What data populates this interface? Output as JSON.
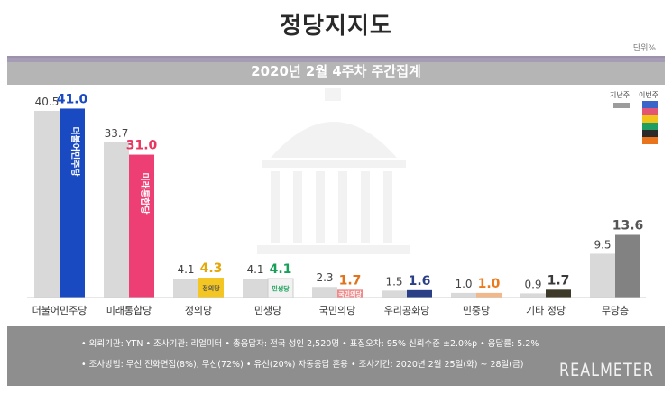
{
  "title": "정당지지도",
  "unit": "단위%",
  "subtitle": "2020년 2월 4주차 주간집계",
  "legend": {
    "prev": "지난주",
    "curr": "이번주"
  },
  "colors": {
    "prev": "#d9d9d9",
    "legend_curr": [
      "#3a66c9",
      "#e25574",
      "#f0c419",
      "#1e9e62",
      "#2b2b2b",
      "#e8741d"
    ]
  },
  "chart_data": {
    "type": "bar",
    "categories": [
      "더불어민주당",
      "미래통합당",
      "정의당",
      "민생당",
      "국민의당",
      "우리공화당",
      "민중당",
      "기타 정당",
      "무당층"
    ],
    "series": [
      {
        "name": "지난주",
        "values": [
          40.5,
          33.7,
          4.1,
          4.1,
          2.3,
          1.5,
          1.0,
          0.9,
          9.5
        ]
      },
      {
        "name": "이번주",
        "values": [
          41.0,
          31.0,
          4.3,
          4.1,
          1.7,
          1.6,
          1.0,
          1.7,
          13.6
        ]
      }
    ],
    "current_colors": [
      "#1a4ac2",
      "#ee3f74",
      "#f3c623",
      "#f2f2f2",
      "#f08a8a",
      "#2b3f86",
      "#f0b88b",
      "#3d3a2a",
      "#828282"
    ],
    "current_label_colors": [
      "#1a4ac2",
      "#e8365f",
      "#e3a90b",
      "#18a05a",
      "#e0731b",
      "#2b3f86",
      "#ec7a1a",
      "#3a3a3a",
      "#555555"
    ],
    "bar_marks": [
      "더불어민주당",
      "미래통합당",
      "정의당",
      "민생당",
      "국민의당",
      "",
      "",
      "",
      ""
    ],
    "ylim": [
      0,
      45
    ]
  },
  "footer": {
    "line1": "• 의뢰기관: YTN • 조사기관: 리얼미터 • 총응답자: 전국 성인 2,520명 • 표집오차: 95% 신뢰수준 ±2.0%p • 응답률: 5.2%",
    "line2": "• 조사방법: 무선 전화면접(8%), 무선(72%) • 유선(20%) 자동응답 혼용 • 조사기간: 2020년 2월 25일(화) ~ 28일(금)",
    "brand": "REALMETER"
  }
}
